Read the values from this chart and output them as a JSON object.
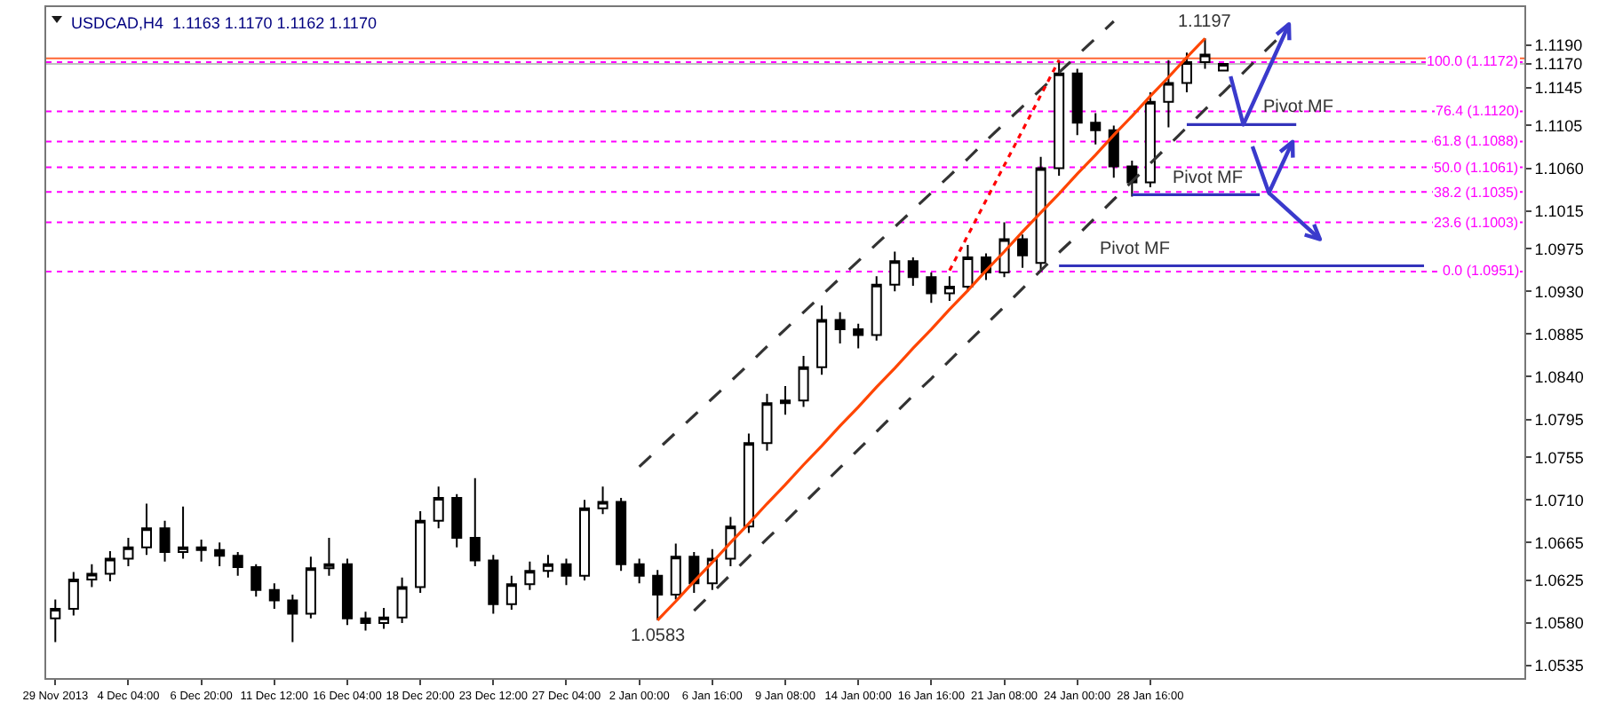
{
  "chart_data": {
    "type": "candlestick",
    "title": "USDCAD,H4  1.1163 1.1170 1.1162 1.1170",
    "color": "#000000",
    "categories": [
      "29 Nov 2013",
      null,
      null,
      null,
      "4 Dec 04:00",
      null,
      null,
      null,
      "6 Dec 20:00",
      null,
      null,
      null,
      "11 Dec 12:00",
      null,
      null,
      null,
      "16 Dec 04:00",
      null,
      null,
      null,
      "18 Dec 20:00",
      null,
      null,
      null,
      "23 Dec 12:00",
      null,
      null,
      null,
      "27 Dec 04:00",
      null,
      null,
      null,
      "2 Jan 00:00",
      null,
      null,
      null,
      "6 Jan 16:00",
      null,
      null,
      null,
      "9 Jan 08:00",
      null,
      null,
      null,
      "14 Jan 00:00",
      null,
      null,
      null,
      "16 Jan 16:00",
      null,
      null,
      null,
      "21 Jan 08:00",
      null,
      null,
      null,
      "24 Jan 00:00",
      null,
      null,
      null,
      "28 Jan 16:00",
      null,
      null,
      null,
      null,
      null,
      null,
      null,
      null,
      null,
      null,
      null,
      null,
      null,
      null,
      null,
      null,
      null,
      null,
      null,
      null
    ],
    "ohlc": [
      [
        1.0585,
        1.0605,
        1.056,
        1.0595
      ],
      [
        1.0595,
        1.0634,
        1.0588,
        1.0626
      ],
      [
        1.0626,
        1.0642,
        1.0618,
        1.0632
      ],
      [
        1.0632,
        1.0656,
        1.0624,
        1.0648
      ],
      [
        1.0648,
        1.067,
        1.064,
        1.066
      ],
      [
        1.066,
        1.0706,
        1.0652,
        1.068
      ],
      [
        1.068,
        1.0688,
        1.0645,
        1.0655
      ],
      [
        1.0655,
        1.0703,
        1.0648,
        1.066
      ],
      [
        1.066,
        1.0668,
        1.0645,
        1.0657
      ],
      [
        1.0657,
        1.0665,
        1.064,
        1.0651
      ],
      [
        1.0651,
        1.0655,
        1.063,
        1.0639
      ],
      [
        1.0639,
        1.0642,
        1.0608,
        1.0615
      ],
      [
        1.0615,
        1.0622,
        1.0595,
        1.0604
      ],
      [
        1.0604,
        1.061,
        1.056,
        1.059
      ],
      [
        1.059,
        1.065,
        1.0585,
        1.0638
      ],
      [
        1.0638,
        1.067,
        1.063,
        1.0642
      ],
      [
        1.0642,
        1.0648,
        1.0578,
        1.0585
      ],
      [
        1.0585,
        1.0592,
        1.0572,
        1.058
      ],
      [
        1.058,
        1.0596,
        1.0574,
        1.0586
      ],
      [
        1.0586,
        1.0628,
        1.058,
        1.0618
      ],
      [
        1.0618,
        1.0698,
        1.0612,
        1.0688
      ],
      [
        1.0688,
        1.0724,
        1.068,
        1.0712
      ],
      [
        1.0712,
        1.0716,
        1.066,
        1.067
      ],
      [
        1.067,
        1.0733,
        1.064,
        1.0646
      ],
      [
        1.0646,
        1.0652,
        1.059,
        1.06
      ],
      [
        1.06,
        1.063,
        1.0594,
        1.0621
      ],
      [
        1.0621,
        1.0645,
        1.0615,
        1.0635
      ],
      [
        1.0635,
        1.0652,
        1.0628,
        1.0642
      ],
      [
        1.0642,
        1.0648,
        1.062,
        1.063
      ],
      [
        1.063,
        1.071,
        1.0625,
        1.0701
      ],
      [
        1.0701,
        1.0724,
        1.0695,
        1.0708
      ],
      [
        1.0708,
        1.0712,
        1.0635,
        1.0642
      ],
      [
        1.0642,
        1.0648,
        1.0622,
        1.063
      ],
      [
        1.063,
        1.0636,
        1.0583,
        1.061
      ],
      [
        1.061,
        1.0664,
        1.0605,
        1.065
      ],
      [
        1.065,
        1.0655,
        1.0612,
        1.0622
      ],
      [
        1.0622,
        1.0658,
        1.0615,
        1.0648
      ],
      [
        1.0648,
        1.0692,
        1.064,
        1.0682
      ],
      [
        1.0682,
        1.078,
        1.0675,
        1.077
      ],
      [
        1.077,
        1.0822,
        1.0762,
        1.0812
      ],
      [
        1.0812,
        1.083,
        1.08,
        1.0815
      ],
      [
        1.0815,
        1.0862,
        1.0808,
        1.085
      ],
      [
        1.085,
        1.0915,
        1.0842,
        1.09
      ],
      [
        1.09,
        1.0908,
        1.0875,
        1.089
      ],
      [
        1.089,
        1.0896,
        1.087,
        1.0884
      ],
      [
        1.0884,
        1.0946,
        1.0878,
        1.0937
      ],
      [
        1.0937,
        1.0972,
        1.093,
        1.0962
      ],
      [
        1.0962,
        1.0966,
        1.0936,
        1.0945
      ],
      [
        1.0945,
        1.095,
        1.0918,
        1.0928
      ],
      [
        1.0928,
        1.0946,
        1.092,
        1.0935
      ],
      [
        1.0935,
        1.0979,
        1.093,
        1.0966
      ],
      [
        1.0966,
        1.097,
        1.0942,
        1.095
      ],
      [
        1.095,
        1.1003,
        1.0945,
        1.0985
      ],
      [
        1.0985,
        1.099,
        1.0955,
        1.0968
      ],
      [
        1.096,
        1.1072,
        1.0952,
        1.106
      ],
      [
        1.106,
        1.1174,
        1.1052,
        1.116
      ],
      [
        1.116,
        1.1165,
        1.1095,
        1.1108
      ],
      [
        1.1108,
        1.1118,
        1.1085,
        1.11
      ],
      [
        1.11,
        1.1105,
        1.105,
        1.1062
      ],
      [
        1.1062,
        1.1068,
        1.103,
        1.1045
      ],
      [
        1.1045,
        1.114,
        1.104,
        1.113
      ],
      [
        1.113,
        1.1174,
        1.1103,
        1.115
      ],
      [
        1.115,
        1.1182,
        1.114,
        1.1172
      ],
      [
        1.1172,
        1.1197,
        1.1165,
        1.118
      ],
      [
        1.1163,
        1.117,
        1.1162,
        1.117
      ],
      null,
      null,
      null,
      null,
      null,
      null,
      null,
      null,
      null,
      null,
      null,
      null,
      null,
      null,
      null,
      null
    ],
    "series": [
      {
        "type": "line",
        "color": "#333333",
        "line_style": "dashed",
        "values": [
          null,
          null,
          null,
          null,
          null,
          null,
          null,
          null,
          null,
          null,
          null,
          null,
          null,
          null,
          null,
          null,
          null,
          null,
          null,
          null,
          null,
          null,
          null,
          null,
          null,
          null,
          null,
          null,
          null,
          null,
          null,
          null,
          1.0745,
          1.0763,
          1.0781,
          1.0799,
          1.0817,
          1.0835,
          1.0853,
          1.0872,
          1.089,
          1.0908,
          1.0926,
          1.0944,
          1.0962,
          1.098,
          1.0998,
          1.1016,
          1.1034,
          1.1052,
          1.107,
          1.1089,
          1.1107,
          1.1125,
          1.1143,
          1.1161,
          1.1179,
          1.1197,
          1.1215,
          null,
          null,
          null,
          null,
          null,
          null,
          null,
          null,
          null,
          null,
          null,
          null,
          null,
          null,
          null,
          null,
          null,
          null,
          null,
          null,
          null,
          null
        ]
      },
      {
        "type": "line",
        "color": "#333333",
        "line_style": "dashed",
        "values": [
          null,
          null,
          null,
          null,
          null,
          null,
          null,
          null,
          null,
          null,
          null,
          null,
          null,
          null,
          null,
          null,
          null,
          null,
          null,
          null,
          null,
          null,
          null,
          null,
          null,
          null,
          null,
          null,
          null,
          null,
          null,
          null,
          null,
          null,
          null,
          1.0593,
          1.0612,
          1.0631,
          1.065,
          1.0669,
          1.0687,
          1.0706,
          1.0725,
          1.0744,
          1.0763,
          1.0782,
          1.0801,
          1.082,
          1.0838,
          1.0857,
          1.0876,
          1.0895,
          1.0914,
          1.0933,
          1.0952,
          1.0971,
          1.0989,
          1.1008,
          1.1027,
          1.1046,
          1.1065,
          1.1084,
          1.1103,
          1.1122,
          1.114,
          1.1159,
          1.1178,
          1.1197,
          null,
          null,
          null,
          null,
          null,
          null,
          null,
          null,
          null,
          null,
          null,
          null,
          null
        ]
      },
      {
        "type": "line",
        "color": "#ff0000",
        "line_style": "dotted",
        "values": [
          null,
          null,
          null,
          null,
          null,
          null,
          null,
          null,
          null,
          null,
          null,
          null,
          null,
          null,
          null,
          null,
          null,
          null,
          null,
          null,
          null,
          null,
          null,
          null,
          null,
          null,
          null,
          null,
          null,
          null,
          null,
          null,
          null,
          null,
          null,
          null,
          null,
          null,
          null,
          null,
          null,
          null,
          null,
          null,
          null,
          null,
          null,
          null,
          null,
          1.0952,
          1.0989,
          1.1026,
          1.1063,
          1.11,
          1.1137,
          1.1174,
          null,
          null,
          null,
          null,
          null,
          null,
          null,
          null,
          null,
          null,
          null,
          null,
          null,
          null,
          null,
          null,
          null,
          null,
          null,
          null,
          null,
          null,
          null,
          null,
          null
        ]
      },
      {
        "type": "line",
        "color": "#ff4500",
        "line_style": "solid",
        "values": [
          null,
          null,
          null,
          null,
          null,
          null,
          null,
          null,
          null,
          null,
          null,
          null,
          null,
          null,
          null,
          null,
          null,
          null,
          null,
          null,
          null,
          null,
          null,
          null,
          null,
          null,
          null,
          null,
          null,
          null,
          null,
          null,
          null,
          1.0583,
          1.0603,
          1.0624,
          1.0644,
          1.0665,
          1.0685,
          1.0706,
          1.0726,
          1.0747,
          1.0767,
          1.0788,
          1.0808,
          1.0829,
          1.0849,
          1.087,
          1.089,
          1.0911,
          1.0931,
          1.0952,
          1.0972,
          1.0993,
          1.1013,
          1.1033,
          1.1054,
          1.1074,
          1.1095,
          1.1115,
          1.1136,
          1.1156,
          1.1177,
          1.1197,
          null,
          null,
          null,
          null,
          null,
          null,
          null,
          null,
          null,
          null,
          null,
          null,
          null,
          null,
          null,
          null,
          null
        ]
      },
      {
        "type": "line",
        "color": "#3333bb",
        "line_style": "solid",
        "values": [
          null,
          null,
          null,
          null,
          null,
          null,
          null,
          null,
          null,
          null,
          null,
          null,
          null,
          null,
          null,
          null,
          null,
          null,
          null,
          null,
          null,
          null,
          null,
          null,
          null,
          null,
          null,
          null,
          null,
          null,
          null,
          null,
          null,
          null,
          null,
          null,
          null,
          null,
          null,
          null,
          null,
          null,
          null,
          null,
          null,
          null,
          null,
          null,
          null,
          null,
          null,
          null,
          null,
          null,
          null,
          1.0957,
          1.0957,
          1.0957,
          1.0957,
          1.0957,
          1.0957,
          1.0957,
          1.0957,
          1.0957,
          1.0957,
          1.0957,
          1.0957,
          1.0957,
          1.0957,
          1.0957,
          1.0957,
          1.0957,
          1.0957,
          1.0957,
          1.0957,
          1.0957,
          null,
          null,
          null,
          null,
          null
        ]
      },
      {
        "type": "line",
        "color": "#3333bb",
        "line_style": "solid",
        "values": [
          null,
          null,
          null,
          null,
          null,
          null,
          null,
          null,
          null,
          null,
          null,
          null,
          null,
          null,
          null,
          null,
          null,
          null,
          null,
          null,
          null,
          null,
          null,
          null,
          null,
          null,
          null,
          null,
          null,
          null,
          null,
          null,
          null,
          null,
          null,
          null,
          null,
          null,
          null,
          null,
          null,
          null,
          null,
          null,
          null,
          null,
          null,
          null,
          null,
          null,
          null,
          null,
          null,
          null,
          null,
          null,
          null,
          null,
          null,
          1.1032,
          1.1032,
          1.1032,
          1.1032,
          1.1032,
          1.1032,
          1.1032,
          1.1032,
          null,
          null,
          null,
          null,
          null,
          null,
          null,
          null,
          null,
          null,
          null,
          null,
          null,
          null
        ]
      },
      {
        "type": "line",
        "color": "#3333bb",
        "line_style": "solid",
        "values": [
          null,
          null,
          null,
          null,
          null,
          null,
          null,
          null,
          null,
          null,
          null,
          null,
          null,
          null,
          null,
          null,
          null,
          null,
          null,
          null,
          null,
          null,
          null,
          null,
          null,
          null,
          null,
          null,
          null,
          null,
          null,
          null,
          null,
          null,
          null,
          null,
          null,
          null,
          null,
          null,
          null,
          null,
          null,
          null,
          null,
          null,
          null,
          null,
          null,
          null,
          null,
          null,
          null,
          null,
          null,
          null,
          null,
          null,
          null,
          null,
          null,
          null,
          1.1106,
          1.1106,
          1.1106,
          1.1106,
          1.1106,
          1.1106,
          1.1106,
          null,
          null,
          null,
          null,
          null,
          null,
          null,
          null,
          null,
          null,
          null,
          null
        ]
      }
    ],
    "ylim": [
      1.0522,
      1.123
    ],
    "yticks": [
      1.0535,
      {
        "value": 1.058,
        "label": "1.0580"
      },
      1.0625,
      1.0665,
      {
        "value": 1.071,
        "label": "1.0710"
      },
      1.0755,
      1.0795,
      {
        "value": 1.084,
        "label": "1.0840"
      },
      1.0885,
      {
        "value": 1.093,
        "label": "1.0930"
      },
      1.0975,
      1.1015,
      {
        "value": 1.106,
        "label": "1.1060"
      },
      1.1105,
      1.1145,
      {
        "value": 1.117,
        "label": "1.1170"
      },
      {
        "value": 1.119,
        "label": "1.1190"
      }
    ],
    "ref_lines": [
      {
        "axis": "y",
        "value": 1.1176,
        "color": "#ff6633",
        "line_style": "solid"
      },
      {
        "axis": "y",
        "value": 1.117,
        "color": "#c0c0c0",
        "line_style": "solid"
      },
      {
        "axis": "y",
        "value": 1.1172,
        "label": "100.0 (1.1172)",
        "color": "#ff00ff",
        "line_style": "dotted"
      },
      {
        "axis": "y",
        "value": 1.112,
        "label": "76.4 (1.1120)",
        "color": "#ff00ff",
        "line_style": "dotted"
      },
      {
        "axis": "y",
        "value": 1.1088,
        "label": "61.8 (1.1088)",
        "color": "#ff00ff",
        "line_style": "dotted"
      },
      {
        "axis": "y",
        "value": 1.1061,
        "label": "50.0 (1.1061)",
        "color": "#ff00ff",
        "line_style": "dotted"
      },
      {
        "axis": "y",
        "value": 1.1035,
        "label": "38.2 (1.1035)",
        "color": "#ff00ff",
        "line_style": "dotted"
      },
      {
        "axis": "y",
        "value": 1.1003,
        "label": "23.6 (1.1003)",
        "color": "#ff00ff",
        "line_style": "dotted"
      },
      {
        "axis": "y",
        "value": 1.0951,
        "label": "0.0 (1.0951)",
        "color": "#ff00ff",
        "line_style": "dotted"
      }
    ],
    "annotations": [
      {
        "text": "1.1197",
        "y": 1.1197
      },
      {
        "text": "1.0583",
        "y": 1.0583
      },
      {
        "text": "Pivot MF",
        "y": 1.0957
      },
      {
        "text": "Pivot MF",
        "y": 1.1032
      },
      {
        "text": "Pivot MF",
        "y": 1.1106
      }
    ]
  }
}
